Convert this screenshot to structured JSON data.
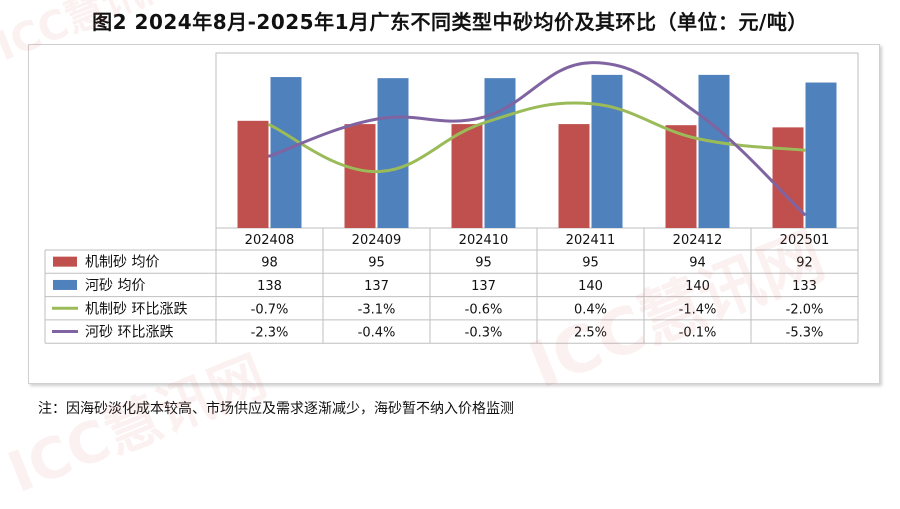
{
  "title": "图2 2024年8月-2025年1月广东不同类型中砂均价及其环比（单位：元/吨）",
  "note": "注：因海砂淡化成本较高、市场供应及需求逐渐减少，海砂暂不纳入价格监测",
  "watermark": "ICC慧讯网",
  "colors": {
    "bar_red": "#c0504d",
    "bar_blue": "#4f81bd",
    "line_green": "#9bbb59",
    "line_purple": "#8064a2",
    "grid": "#bfbfbf"
  },
  "chart_data": {
    "type": "bar",
    "categories": [
      "202408",
      "202409",
      "202410",
      "202411",
      "202412",
      "202501"
    ],
    "series": [
      {
        "name": "机制砂 均价",
        "type": "bar",
        "values": [
          98,
          95,
          95,
          95,
          94,
          92
        ],
        "labels": [
          "98",
          "95",
          "95",
          "95",
          "94",
          "92"
        ]
      },
      {
        "name": "河砂 均价",
        "type": "bar",
        "values": [
          138,
          137,
          137,
          140,
          140,
          133
        ],
        "labels": [
          "138",
          "137",
          "137",
          "140",
          "140",
          "133"
        ]
      },
      {
        "name": "机制砂 环比涨跌",
        "type": "line",
        "values": [
          -0.7,
          -3.1,
          -0.6,
          0.4,
          -1.4,
          -2.0
        ],
        "labels": [
          "-0.7%",
          "-3.1%",
          "-0.6%",
          "0.4%",
          "-1.4%",
          "-2.0%"
        ]
      },
      {
        "name": "河砂 环比涨跌",
        "type": "line",
        "values": [
          -2.3,
          -0.4,
          -0.3,
          2.5,
          -0.1,
          -5.3
        ],
        "labels": [
          "-2.3%",
          "-0.4%",
          "-0.3%",
          "2.5%",
          "-0.1%",
          "-5.3%"
        ]
      }
    ],
    "bar_axis": {
      "min": 0,
      "max": 160
    },
    "line_axis": {
      "min": -6,
      "max": 3
    },
    "data_table": true,
    "grid": false
  }
}
